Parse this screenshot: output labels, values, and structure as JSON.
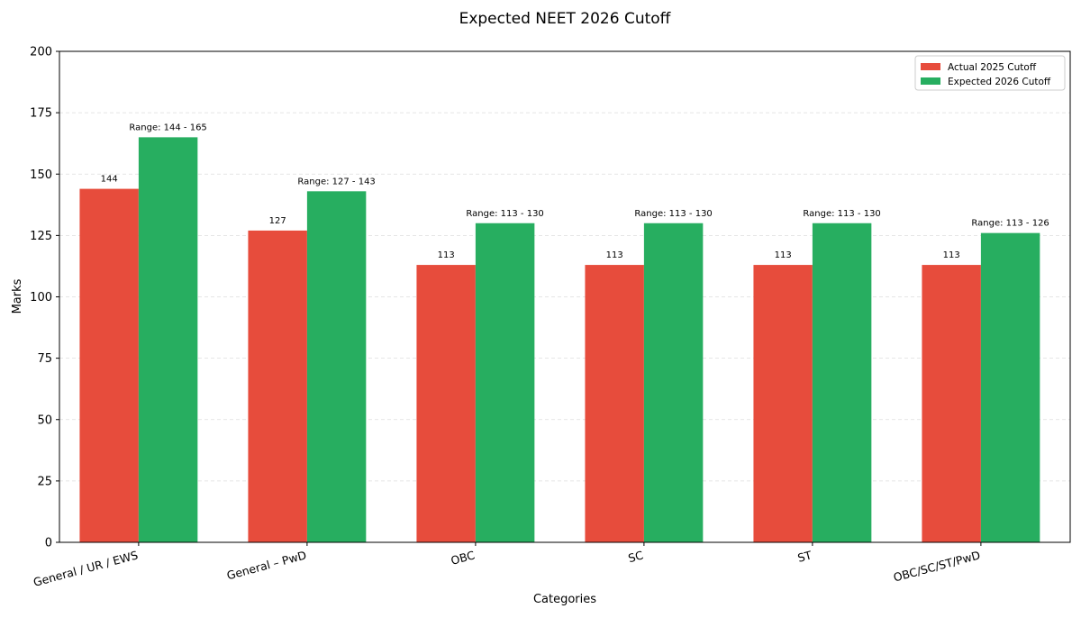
{
  "chart_data": {
    "type": "bar",
    "title": "Expected NEET 2026 Cutoff",
    "xlabel": "Categories",
    "ylabel": "Marks",
    "ylim": [
      0,
      200
    ],
    "yticks": [
      0,
      25,
      50,
      75,
      100,
      125,
      150,
      175,
      200
    ],
    "grid": "y-dashed",
    "legend_position": "top-right",
    "categories": [
      "General / UR / EWS",
      "General – PwD",
      "OBC",
      "SC",
      "ST",
      "OBC/SC/ST/PwD"
    ],
    "series": [
      {
        "name": "Actual 2025 Cutoff",
        "color": "#e74c3c",
        "values": [
          144,
          127,
          113,
          113,
          113,
          113
        ],
        "labels": [
          "144",
          "127",
          "113",
          "113",
          "113",
          "113"
        ]
      },
      {
        "name": "Expected 2026 Cutoff",
        "color": "#27ae60",
        "values": [
          165,
          143,
          130,
          130,
          130,
          126
        ],
        "labels": [
          "Range: 144 - 165",
          "Range: 127 - 143",
          "Range: 113 - 130",
          "Range: 113 - 130",
          "Range: 113 - 130",
          "Range: 113 - 126"
        ]
      }
    ]
  }
}
